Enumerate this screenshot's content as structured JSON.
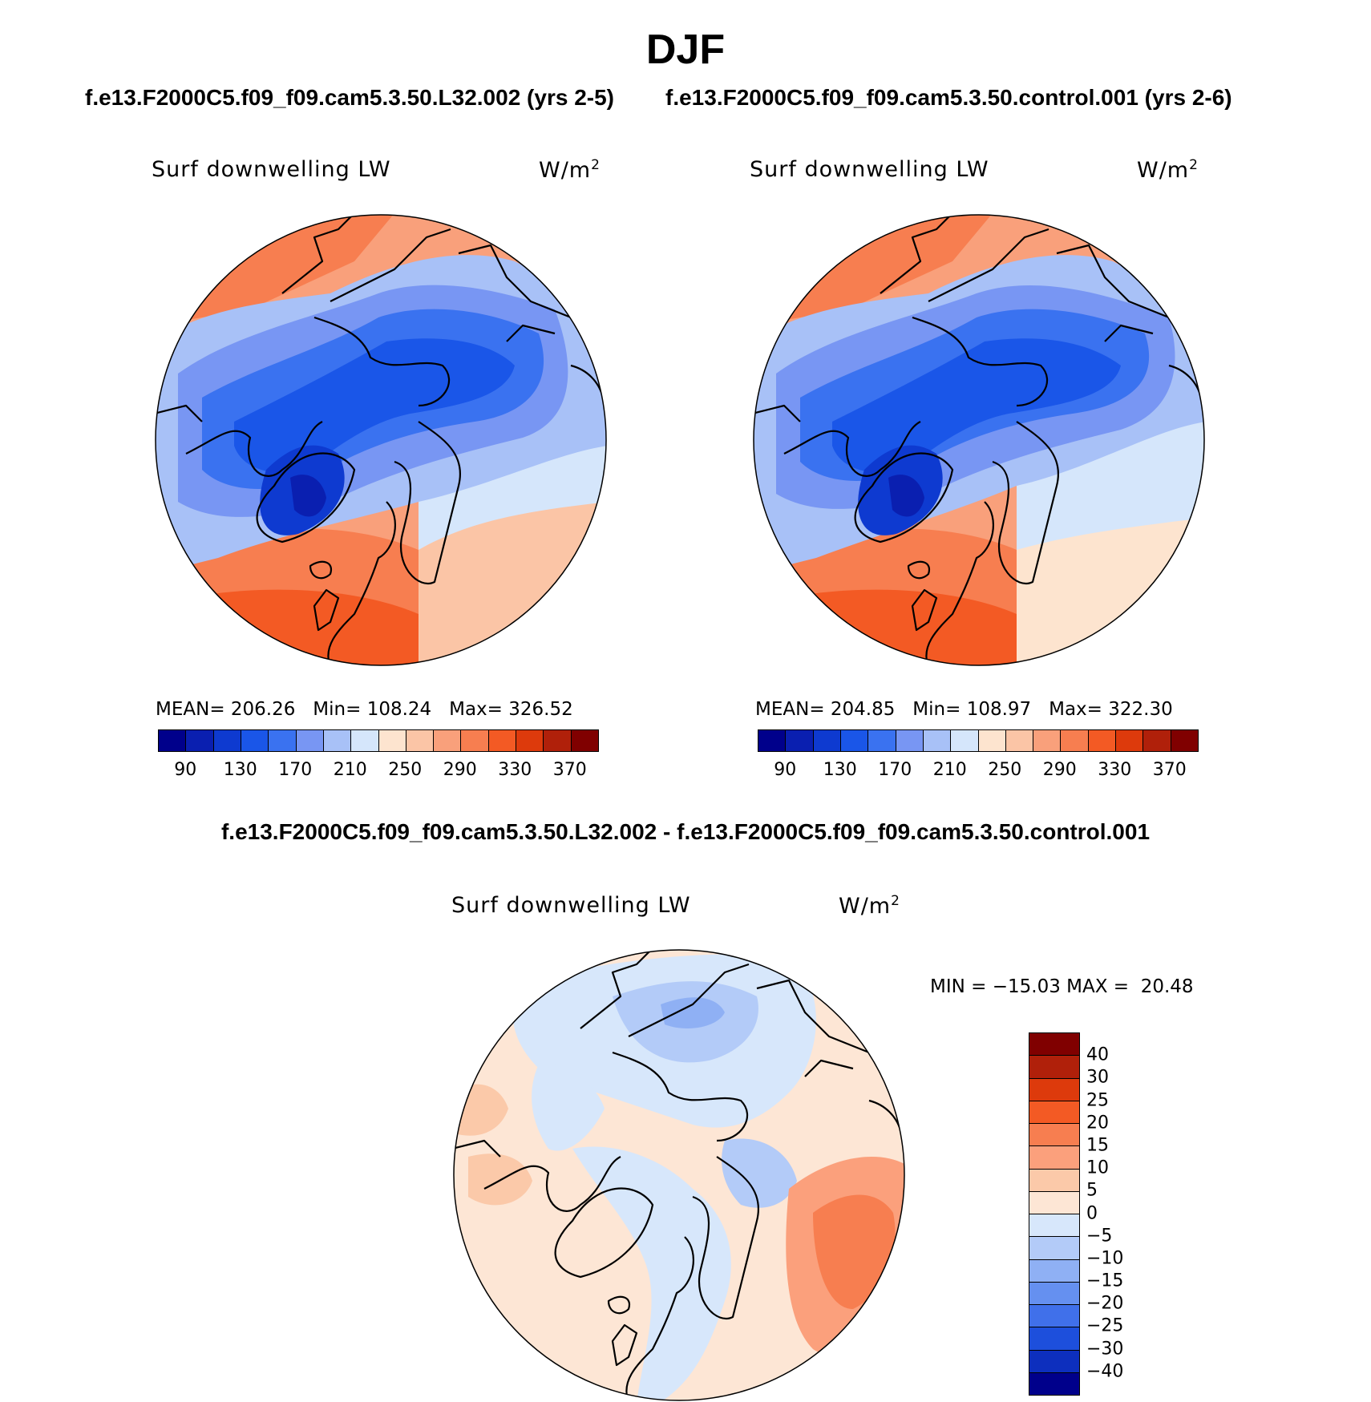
{
  "page_title": "DJF",
  "left_run_title": "f.e13.F2000C5.f09_f09.cam5.3.50.L32.002 (yrs 2-5)",
  "right_run_title": "f.e13.F2000C5.f09_f09.cam5.3.50.control.001 (yrs 2-6)",
  "diff_title": "f.e13.F2000C5.f09_f09.cam5.3.50.L32.002 - f.e13.F2000C5.f09_f09.cam5.3.50.control.001",
  "variable_label": "Surf downwelling LW",
  "unit_base": "W/m",
  "unit_exp": "2",
  "panel_left": {
    "stats": "MEAN= 206.26   Min= 108.24   Max= 326.52",
    "mean": 206.26,
    "min": 108.24,
    "max": 326.52
  },
  "panel_right": {
    "stats": "MEAN= 204.85   Min= 108.97   Max= 322.30",
    "mean": 204.85,
    "min": 108.97,
    "max": 322.3
  },
  "panel_diff": {
    "stats": "MIN = −15.03 MAX =  20.48",
    "min": -15.03,
    "max": 20.48
  },
  "abs_colorbar": {
    "colors": [
      "#00008b",
      "#0a1fb0",
      "#0e3ad0",
      "#1a56e8",
      "#3a72f0",
      "#7896f3",
      "#a8c1f7",
      "#d5e6fb",
      "#fde4cf",
      "#fbc5a6",
      "#f9a07b",
      "#f77e50",
      "#f35a24",
      "#dd3a0c",
      "#b0200a",
      "#800000"
    ],
    "ticks": [
      "90",
      "130",
      "170",
      "210",
      "250",
      "290",
      "330",
      "370"
    ]
  },
  "diff_colorbar": {
    "colors": [
      "#800000",
      "#b0200a",
      "#dd3a0c",
      "#f35a24",
      "#f77e50",
      "#fba07c",
      "#fbc9a9",
      "#fde6d5",
      "#d7e7fb",
      "#b3cbf8",
      "#8fb0f4",
      "#6590f0",
      "#4070ea",
      "#1d4fdc",
      "#0d2fbe",
      "#00008b"
    ],
    "ticks": [
      "40",
      "30",
      "25",
      "20",
      "15",
      "10",
      "5",
      "0",
      "−5",
      "−10",
      "−15",
      "−20",
      "−25",
      "−30",
      "−40"
    ]
  }
}
